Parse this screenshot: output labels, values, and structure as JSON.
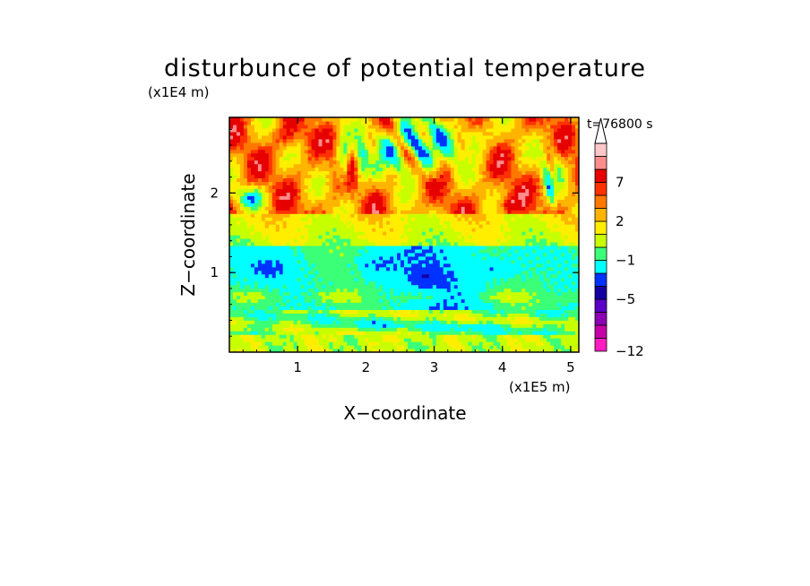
{
  "chart_data": {
    "type": "heatmap",
    "title": "disturbunce of potential temperature",
    "xlabel": "X−coordinate",
    "ylabel": "Z−coordinate",
    "x_unit": "(x1E5 m)",
    "y_unit": "(x1E4 m)",
    "time_label": "t=76800 s",
    "xlim": [
      0,
      5.12
    ],
    "ylim": [
      0,
      2.95
    ],
    "x_ticks": [
      {
        "value": 1,
        "label": "1"
      },
      {
        "value": 2,
        "label": "2"
      },
      {
        "value": 3,
        "label": "3"
      },
      {
        "value": 4,
        "label": "4"
      },
      {
        "value": 5,
        "label": "5"
      }
    ],
    "y_ticks": [
      {
        "value": 1,
        "label": "1"
      },
      {
        "value": 2,
        "label": "2"
      }
    ],
    "colorbar": {
      "levels": [
        {
          "color": "#ff1cc0"
        },
        {
          "color": "#c800a8"
        },
        {
          "color": "#8c00b4"
        },
        {
          "color": "#5a00c8"
        },
        {
          "color": "#1400a0"
        },
        {
          "color": "#0032ff"
        },
        {
          "color": "#00ffff"
        },
        {
          "color": "#3cff78"
        },
        {
          "color": "#c8ff00"
        },
        {
          "color": "#ffee00"
        },
        {
          "color": "#ffb400"
        },
        {
          "color": "#ff7800"
        },
        {
          "color": "#ff3200"
        },
        {
          "color": "#e60000"
        },
        {
          "color": "#ff8c8c"
        },
        {
          "color": "#ffc8c8"
        }
      ],
      "labels": [
        {
          "text": "−12",
          "boundary": 0
        },
        {
          "text": "−5",
          "boundary": 4
        },
        {
          "text": "−1",
          "boundary": 7
        },
        {
          "text": "2",
          "boundary": 10
        },
        {
          "text": "7",
          "boundary": 13
        }
      ],
      "extend": "max"
    },
    "field_description_layers": [
      {
        "z_range": [
          0,
          0.2
        ],
        "dominant": "yellow/orange with green and blue streaks"
      },
      {
        "z_range": [
          0.2,
          0.5
        ],
        "dominant": "green, yellow, blue thin bands"
      },
      {
        "z_range": [
          0.5,
          1.3
        ],
        "dominant": "cyan with dark blue blobs"
      },
      {
        "z_range": [
          1.3,
          1.7
        ],
        "dominant": "green/yellow transition"
      },
      {
        "z_range": [
          1.7,
          2.95
        ],
        "dominant": "orange/red with dark blue and purple cells"
      }
    ]
  }
}
